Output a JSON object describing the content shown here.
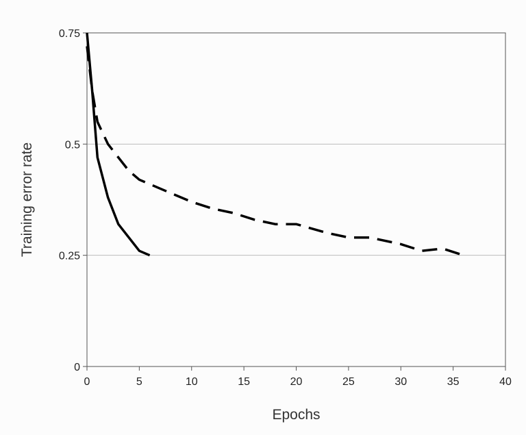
{
  "chart_data": {
    "type": "line",
    "xlabel": "Epochs",
    "ylabel": "Training error rate",
    "xlim": [
      0,
      40
    ],
    "ylim": [
      0,
      0.75
    ],
    "xticks": [
      0,
      5,
      10,
      15,
      20,
      25,
      30,
      35,
      40
    ],
    "yticks": [
      0,
      0.25,
      0.5,
      0.75
    ],
    "xtick_labels": [
      "0",
      "5",
      "10",
      "15",
      "20",
      "25",
      "30",
      "35",
      "40"
    ],
    "ytick_labels": [
      "0",
      "0.25",
      "0.5",
      "0.75"
    ],
    "grid": "horizontal",
    "series": [
      {
        "style": "solid",
        "color": "#000000",
        "x": [
          0,
          0.5,
          1,
          2,
          3,
          4,
          5,
          6
        ],
        "y": [
          0.75,
          0.62,
          0.47,
          0.38,
          0.32,
          0.29,
          0.26,
          0.25
        ]
      },
      {
        "style": "dashed",
        "color": "#000000",
        "x": [
          0,
          0.5,
          1,
          2,
          3,
          4,
          5,
          7,
          8,
          10,
          12,
          14,
          16,
          18,
          20,
          23,
          25,
          27,
          30,
          32,
          34,
          36
        ],
        "y": [
          0.72,
          0.62,
          0.55,
          0.5,
          0.47,
          0.44,
          0.42,
          0.4,
          0.39,
          0.37,
          0.355,
          0.345,
          0.33,
          0.32,
          0.32,
          0.3,
          0.29,
          0.29,
          0.275,
          0.26,
          0.265,
          0.25
        ]
      }
    ]
  }
}
